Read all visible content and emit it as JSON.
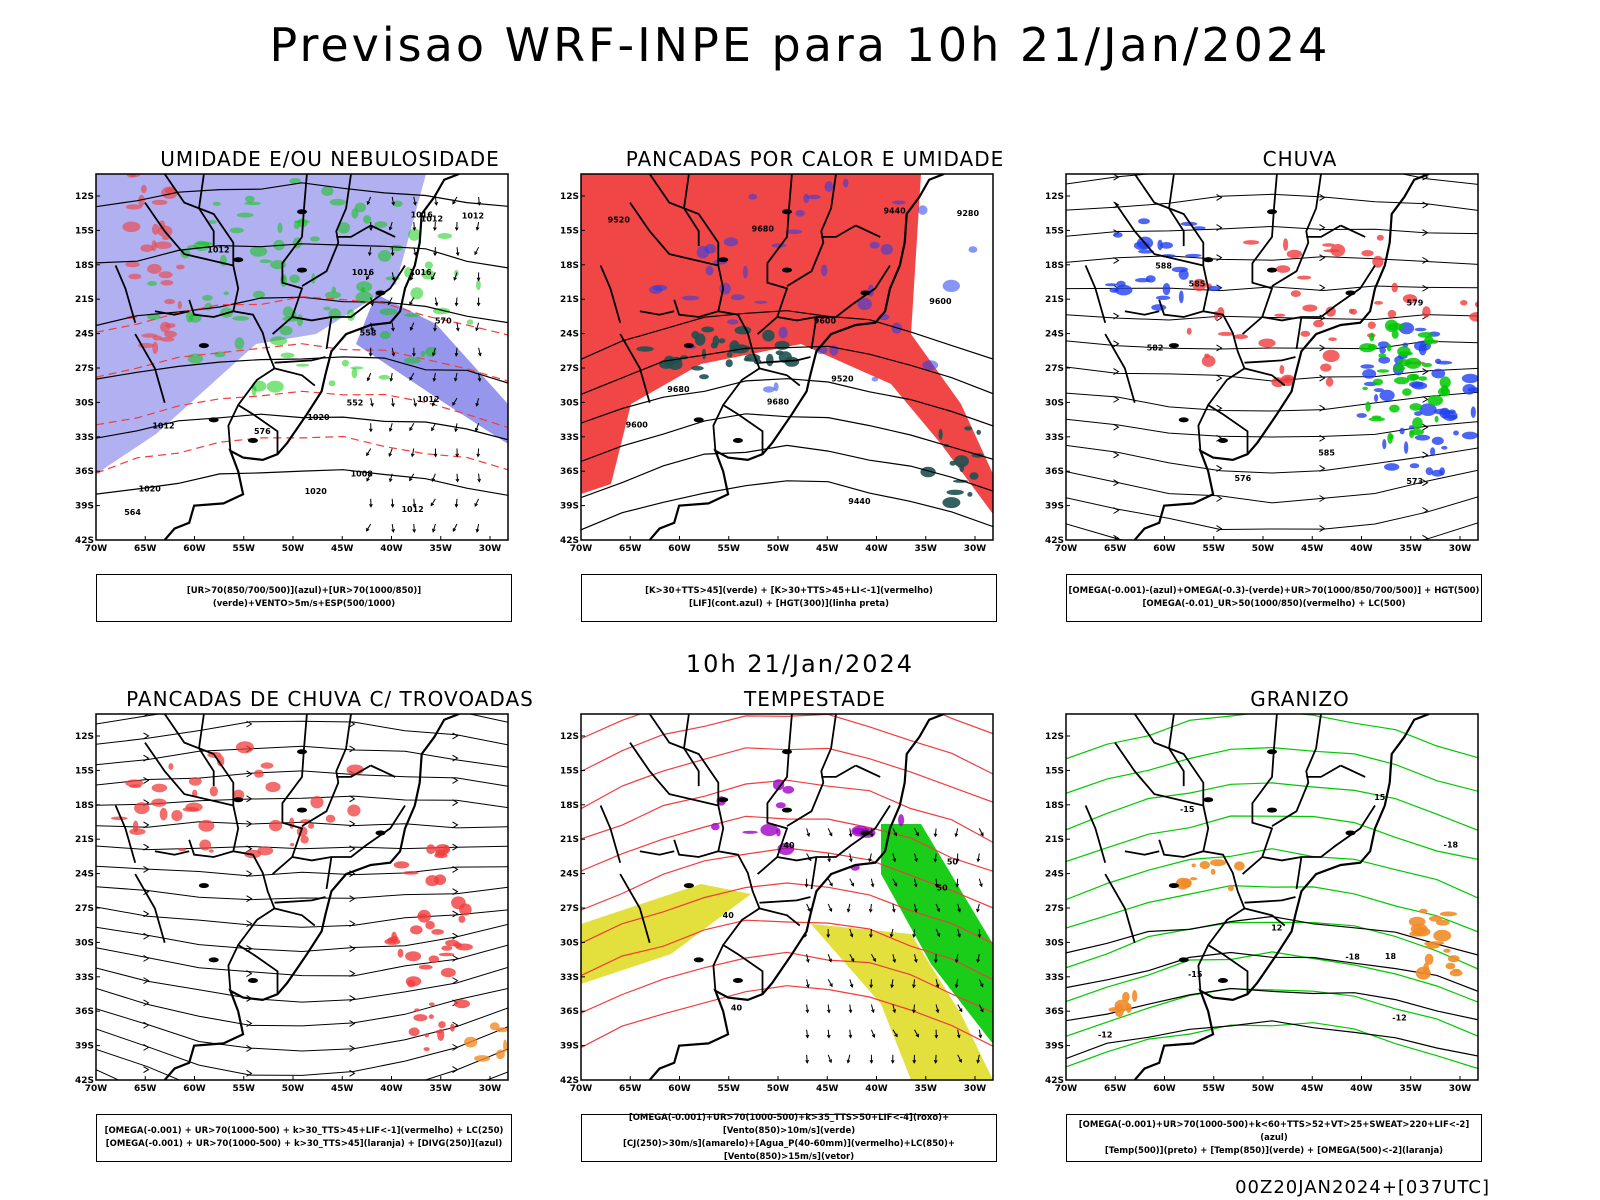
{
  "main_title": "Previsao WRF-INPE  para 10h 21/Jan/2024",
  "mid_title": "10h 21/Jan/2024",
  "footer_stamp": "00Z20JAN2024+[037UTC]",
  "axes": {
    "lat_labels": [
      "12S",
      "15S",
      "18S",
      "21S",
      "24S",
      "27S",
      "30S",
      "33S",
      "36S",
      "39S",
      "42S"
    ],
    "lon_labels": [
      "70W",
      "65W",
      "60W",
      "55W",
      "50W",
      "45W",
      "40W",
      "35W",
      "30W"
    ]
  },
  "colors": {
    "humidity_blue": "#a8a8f0",
    "humidity_blue_dark": "#5050e0",
    "green": "#00c800",
    "red": "#f03c3c",
    "dark_teal": "#1e5050",
    "yellow": "#e0dc28",
    "orange": "#f08c28",
    "purple": "#a000c8",
    "blue": "#2040f0"
  },
  "panels": [
    {
      "id": "umidade",
      "title": "UMIDADE E/OU NEBULOSIDADE",
      "legend": [
        "[UR>70(850/700/500)](azul)+[UR>70(1000/850)](verde)+VENTO>5m/s+ESP(500/1000)"
      ],
      "contour_labels": [
        "1012",
        "1012",
        "1012",
        "1012",
        "1016",
        "1020",
        "1016",
        "1012",
        "1008",
        "1012",
        "1020",
        "1016",
        "1020",
        "576",
        "570",
        "564",
        "558",
        "552"
      ]
    },
    {
      "id": "pancadas-calor",
      "title": "PANCADAS POR CALOR E UMIDADE",
      "legend": [
        "[K>30+TTS>45](verde) + [K>30+TTS>45+LI<-1](vermelho)",
        "[LIF](cont.azul) + [HGT(300)](linha preta)"
      ],
      "contour_labels": [
        "9680",
        "9680",
        "9680",
        "9600",
        "9520",
        "9440",
        "9280",
        "9600",
        "9520",
        "9440",
        "9600"
      ]
    },
    {
      "id": "chuva",
      "title": "CHUVA",
      "legend": [
        "[OMEGA(-0.001)-(azul)+OMEGA(-0.3)-(verde)+UR>70(1000/850/700/500)] + HGT(500)",
        "[OMEGA(-0.01)_UR>50(1000/850)(vermelho) + LC(500)"
      ],
      "contour_labels": [
        "585",
        "582",
        "579",
        "576",
        "573",
        "588",
        "585"
      ]
    },
    {
      "id": "pancadas-trovoadas",
      "title": "PANCADAS DE CHUVA C/ TROVOADAS",
      "legend": [
        "[OMEGA(-0.001) + UR>70(1000-500) + k>30_TTS>45+LIF<-1](vermelho) + LC(250)",
        "[OMEGA(-0.001) + UR>70(1000-500) + k>30_TTS>45](laranja) + [DIVG(250)](azul)"
      ],
      "contour_labels": []
    },
    {
      "id": "tempestade",
      "title": "TEMPESTADE",
      "legend": [
        "[OMEGA(-0.001)+UR>70(1000-500)+k>35_TTS>50+LIF<-4](roxo)+[Vento(850)>10m/s](verde)",
        "[CJ(250)>30m/s](amarelo)+[Agua_P(40-60mm)](vermelho)+LC(850)+[Vento(850)>15m/s](vetor)"
      ],
      "contour_labels": [
        "40",
        "40",
        "50",
        "50",
        "40"
      ]
    },
    {
      "id": "granizo",
      "title": "GRANIZO",
      "legend": [
        "[OMEGA(-0.001)+UR>70(1000-500)+k<60+TTS>52+VT>25+SWEAT>220+LIF<-2](azul)",
        "[Temp(500)](preto) + [Temp(850)](verde) + [OMEGA(500)<-2](laranja)"
      ],
      "contour_labels": [
        "-12",
        "-12",
        "-15",
        "-15",
        "-18",
        "-18",
        "12",
        "15",
        "18"
      ]
    }
  ]
}
